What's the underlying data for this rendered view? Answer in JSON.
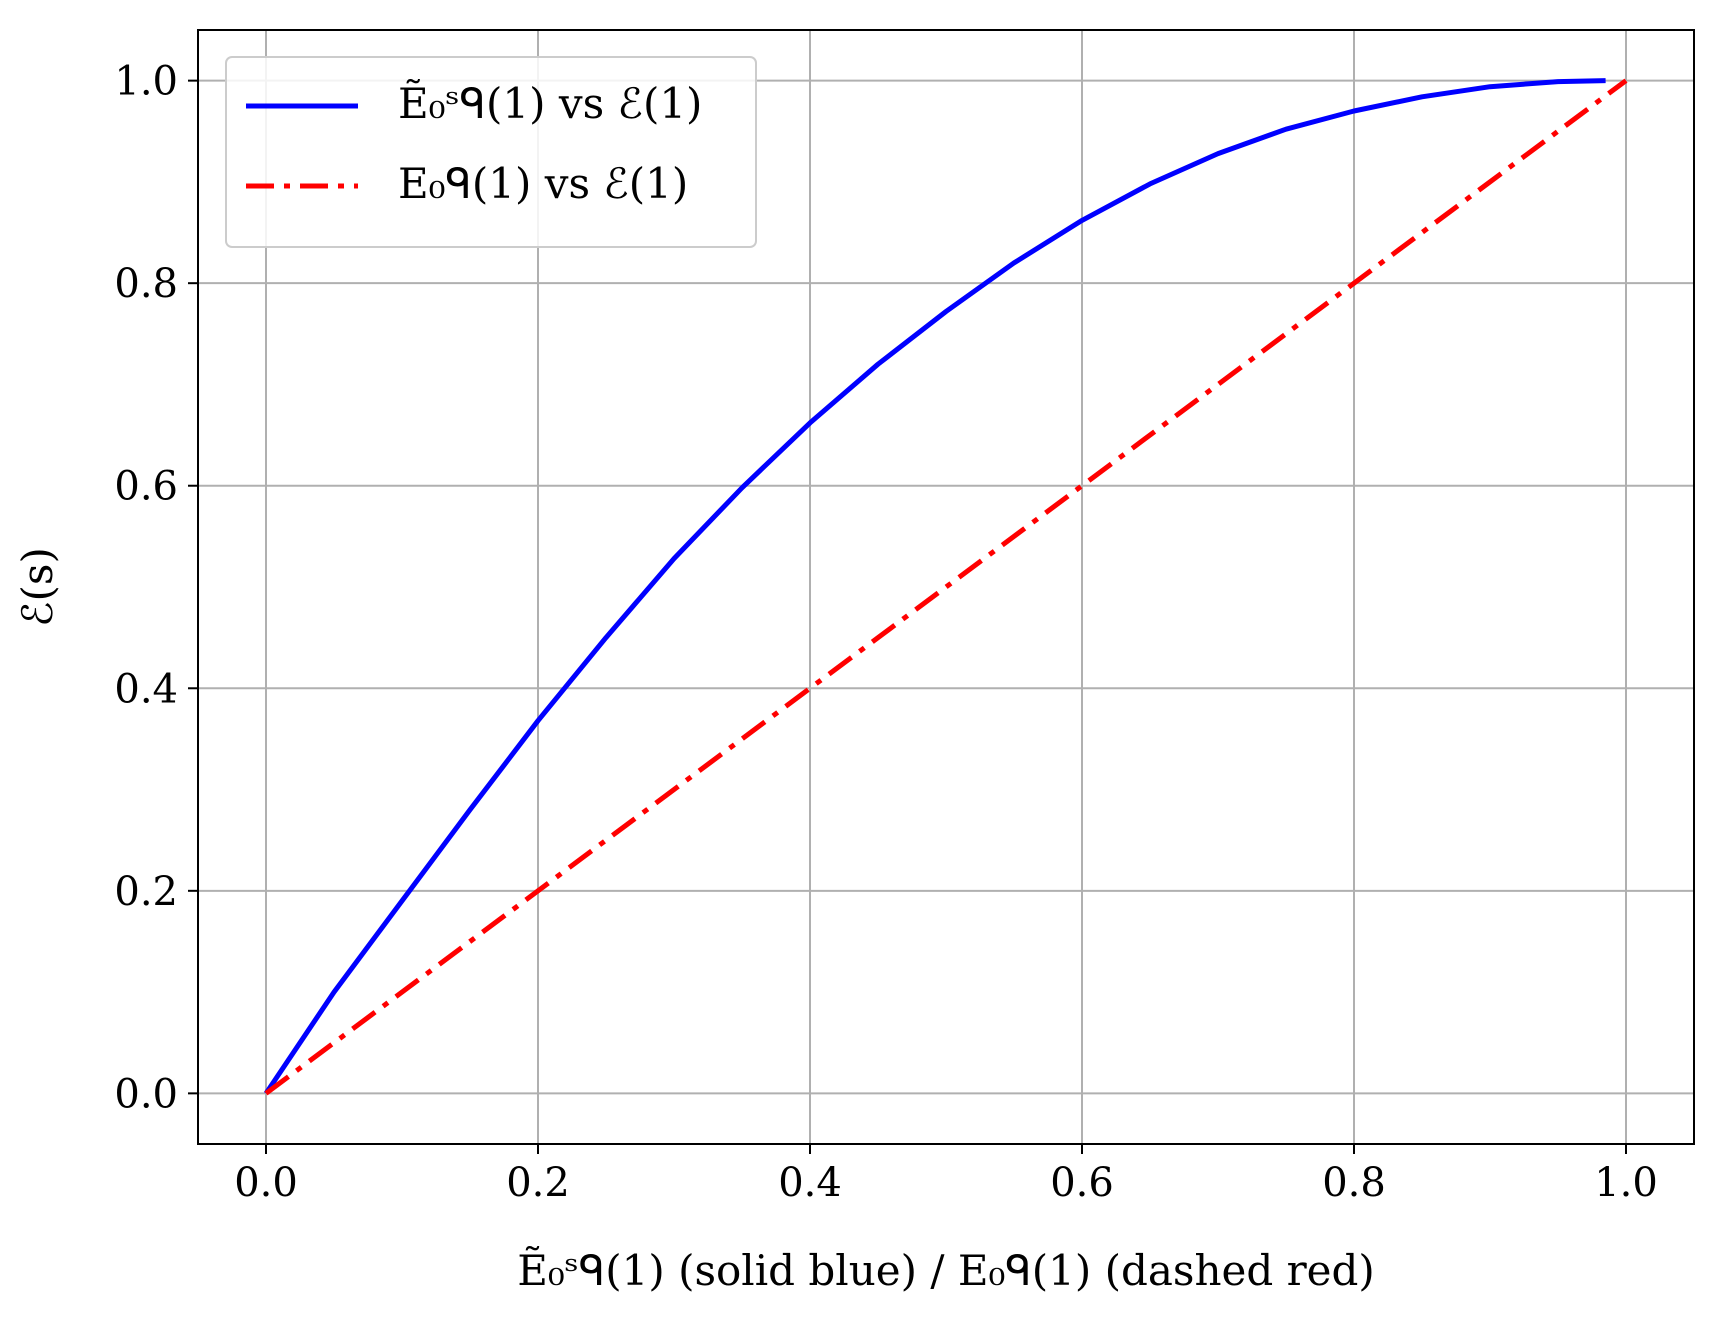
{
  "chart_data": {
    "type": "line",
    "xlabel": "Ẽ₀ˢᑫ(1) (solid blue) / E₀ᑫ(1) (dashed red)",
    "ylabel": "ℰ(s)",
    "xlim": [
      -0.05,
      1.05
    ],
    "ylim": [
      -0.05,
      1.05
    ],
    "xticks": [
      "0.0",
      "0.2",
      "0.4",
      "0.6",
      "0.8",
      "1.0"
    ],
    "yticks": [
      "0.0",
      "0.2",
      "0.4",
      "0.6",
      "0.8",
      "1.0"
    ],
    "grid": true,
    "legend_position": "top-left",
    "series": [
      {
        "name": "Ẽ₀ˢᑫ(1) vs ℰ(1)",
        "color": "#0000ff",
        "style": "solid",
        "x": [
          0.0,
          0.05,
          0.1,
          0.15,
          0.2,
          0.25,
          0.3,
          0.35,
          0.4,
          0.45,
          0.5,
          0.55,
          0.6,
          0.65,
          0.7,
          0.75,
          0.8,
          0.85,
          0.9,
          0.95,
          0.985
        ],
        "y": [
          0.0,
          0.1,
          0.19,
          0.28,
          0.368,
          0.45,
          0.528,
          0.598,
          0.662,
          0.72,
          0.772,
          0.82,
          0.862,
          0.898,
          0.928,
          0.952,
          0.97,
          0.984,
          0.994,
          0.999,
          1.0
        ]
      },
      {
        "name": "E₀ᑫ(1) vs ℰ(1)",
        "color": "#ff0000",
        "style": "dash-dot",
        "x": [
          0.0,
          1.0
        ],
        "y": [
          0.0,
          1.0
        ]
      }
    ]
  }
}
